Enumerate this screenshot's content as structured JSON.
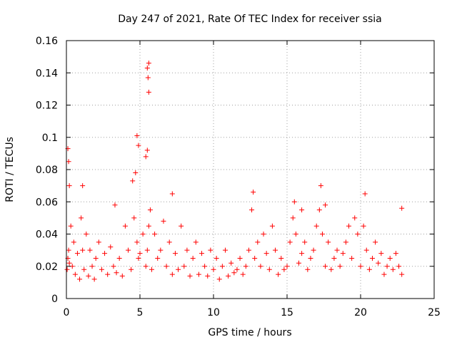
{
  "chart_data": {
    "type": "scatter",
    "title": "Day 247 of 2021, Rate Of TEC Index for receiver ssia",
    "xlabel": "GPS time / hours",
    "ylabel": "ROTI / TECUs",
    "xlim": [
      0,
      25
    ],
    "ylim": [
      0,
      0.16
    ],
    "xticks": [
      0,
      5,
      10,
      15,
      20,
      25
    ],
    "xtick_labels": [
      "0",
      "5",
      "10",
      "15",
      "20",
      "25"
    ],
    "yticks": [
      0,
      0.02,
      0.04,
      0.06,
      0.08,
      0.1,
      0.12,
      0.14,
      0.16
    ],
    "ytick_labels": [
      "0",
      "0.02",
      "0.04",
      "0.06",
      "0.08",
      "0.1",
      "0.12",
      "0.14",
      "0.16"
    ],
    "grid": true,
    "marker": "+",
    "color": "#ff0000",
    "series": [
      {
        "name": "ROTI",
        "x": [
          0.05,
          0.1,
          0.15,
          0.2,
          0.3,
          0.4,
          0.5,
          0.6,
          0.75,
          0.9,
          1.0,
          1.1,
          1.2,
          1.35,
          1.5,
          1.6,
          1.75,
          1.9,
          2.0,
          2.2,
          2.4,
          2.6,
          2.8,
          3.0,
          3.2,
          3.4,
          3.6,
          3.8,
          4.0,
          4.2,
          4.4,
          4.6,
          4.8,
          4.9,
          5.0,
          5.2,
          5.4,
          5.5,
          5.6,
          5.7,
          5.8,
          6.0,
          6.2,
          6.4,
          6.6,
          6.8,
          7.0,
          7.2,
          7.4,
          7.6,
          7.8,
          8.0,
          8.2,
          8.4,
          8.6,
          8.8,
          9.0,
          9.2,
          9.4,
          9.6,
          9.8,
          10.0,
          10.2,
          10.4,
          10.6,
          10.8,
          11.0,
          11.2,
          11.4,
          11.6,
          11.8,
          12.0,
          12.2,
          12.4,
          12.6,
          12.8,
          13.0,
          13.2,
          13.4,
          13.6,
          13.8,
          14.0,
          14.2,
          14.4,
          14.6,
          14.8,
          15.0,
          15.2,
          15.4,
          15.6,
          15.8,
          16.0,
          16.2,
          16.4,
          16.6,
          16.8,
          17.0,
          17.2,
          17.4,
          17.6,
          17.8,
          18.0,
          18.2,
          18.4,
          18.6,
          18.8,
          19.0,
          19.2,
          19.4,
          19.6,
          19.8,
          20.0,
          20.2,
          20.4,
          20.6,
          20.8,
          21.0,
          21.2,
          21.4,
          21.6,
          21.8,
          22.0,
          22.2,
          22.4,
          22.6,
          22.8,
          0.1,
          0.15,
          0.2,
          1.1,
          4.7,
          4.8,
          4.9,
          5.5,
          5.55,
          5.6,
          5.6,
          5.5,
          5.4,
          4.5,
          7.2,
          12.7,
          17.3,
          20.3,
          15.5,
          16.0,
          17.6,
          3.3,
          22.8
        ],
        "y": [
          0.018,
          0.025,
          0.03,
          0.022,
          0.045,
          0.02,
          0.035,
          0.015,
          0.028,
          0.012,
          0.05,
          0.03,
          0.018,
          0.04,
          0.014,
          0.03,
          0.02,
          0.012,
          0.025,
          0.035,
          0.018,
          0.028,
          0.015,
          0.032,
          0.02,
          0.016,
          0.025,
          0.014,
          0.045,
          0.03,
          0.018,
          0.05,
          0.035,
          0.025,
          0.028,
          0.04,
          0.02,
          0.03,
          0.045,
          0.055,
          0.018,
          0.04,
          0.025,
          0.03,
          0.048,
          0.02,
          0.035,
          0.015,
          0.028,
          0.018,
          0.045,
          0.02,
          0.03,
          0.014,
          0.025,
          0.035,
          0.015,
          0.028,
          0.02,
          0.014,
          0.03,
          0.018,
          0.025,
          0.012,
          0.02,
          0.03,
          0.014,
          0.022,
          0.016,
          0.018,
          0.025,
          0.015,
          0.02,
          0.03,
          0.055,
          0.025,
          0.035,
          0.02,
          0.04,
          0.028,
          0.018,
          0.045,
          0.03,
          0.015,
          0.025,
          0.018,
          0.02,
          0.035,
          0.05,
          0.04,
          0.022,
          0.028,
          0.035,
          0.018,
          0.025,
          0.03,
          0.045,
          0.055,
          0.04,
          0.02,
          0.035,
          0.018,
          0.025,
          0.03,
          0.02,
          0.028,
          0.035,
          0.045,
          0.025,
          0.05,
          0.04,
          0.02,
          0.045,
          0.03,
          0.018,
          0.025,
          0.035,
          0.022,
          0.028,
          0.015,
          0.02,
          0.025,
          0.018,
          0.028,
          0.02,
          0.015,
          0.093,
          0.085,
          0.07,
          0.07,
          0.078,
          0.101,
          0.095,
          0.143,
          0.137,
          0.146,
          0.128,
          0.092,
          0.088,
          0.073,
          0.065,
          0.066,
          0.07,
          0.065,
          0.06,
          0.055,
          0.058,
          0.058,
          0.056
        ]
      }
    ]
  }
}
